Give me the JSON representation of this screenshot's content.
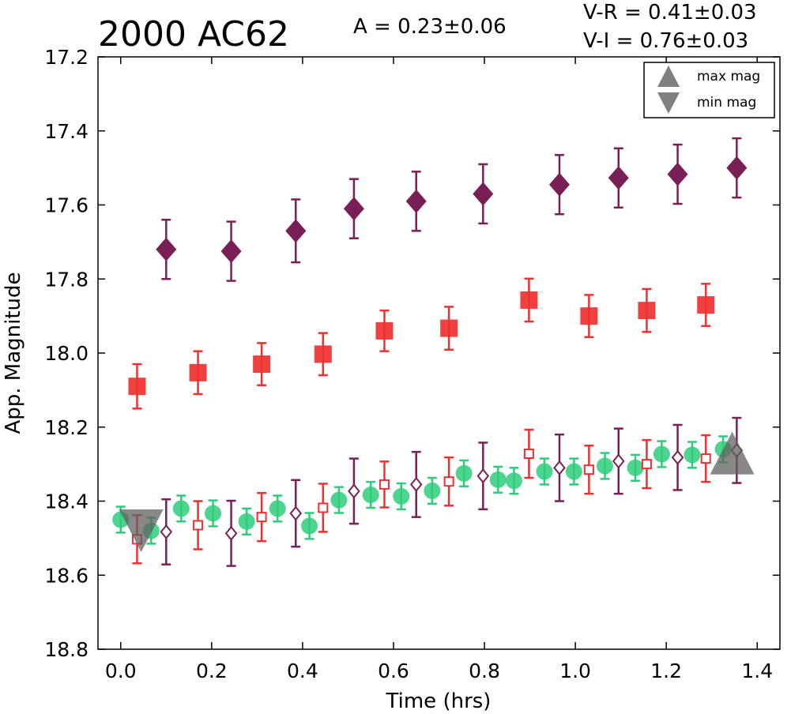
{
  "chart_data": {
    "type": "scatter",
    "title": "2000 AC62",
    "xlabel": "Time (hrs)",
    "ylabel": "App. Magnitude",
    "xlim": [
      -0.05,
      1.45
    ],
    "ylim": [
      18.8,
      17.2
    ],
    "y_inverted": true,
    "xticks": [
      "0.0",
      "0.2",
      "0.4",
      "0.6",
      "0.8",
      "1.0",
      "1.2",
      "1.4"
    ],
    "xtick_values": [
      0.0,
      0.2,
      0.4,
      0.6,
      0.8,
      1.0,
      1.2,
      1.4
    ],
    "yticks": [
      "17.2",
      "17.4",
      "17.6",
      "17.8",
      "18.0",
      "18.2",
      "18.4",
      "18.6",
      "18.8"
    ],
    "ytick_values": [
      17.2,
      17.4,
      17.6,
      17.8,
      18.0,
      18.2,
      18.4,
      18.6,
      18.8
    ],
    "grid": false,
    "legend_placement": "top-right",
    "annotations": {
      "amplitude": "A  = 0.23±0.06",
      "vr": "V-R = 0.41±0.03",
      "vi": "V-I  = 0.76±0.03"
    },
    "legend": [
      {
        "label": "max mag",
        "marker": "triangle-up",
        "color": "#808080"
      },
      {
        "label": "min mag",
        "marker": "triangle-down",
        "color": "#808080"
      }
    ],
    "series": [
      {
        "marker": "diamond-filled",
        "color": "#7a1f55",
        "x": [
          0.1,
          0.243,
          0.385,
          0.513,
          0.65,
          0.797,
          0.965,
          1.095,
          1.225,
          1.355
        ],
        "y": [
          17.72,
          17.725,
          17.67,
          17.61,
          17.59,
          17.57,
          17.545,
          17.527,
          17.517,
          17.5
        ],
        "err": [
          0.08,
          0.08,
          0.085,
          0.08,
          0.08,
          0.08,
          0.08,
          0.08,
          0.08,
          0.08
        ]
      },
      {
        "marker": "square-filled",
        "color": "#f03030",
        "x": [
          0.036,
          0.17,
          0.31,
          0.445,
          0.58,
          0.722,
          0.898,
          1.03,
          1.157,
          1.287
        ],
        "y": [
          18.09,
          18.053,
          18.03,
          18.003,
          17.94,
          17.933,
          17.857,
          17.9,
          17.885,
          17.87
        ],
        "err": [
          0.06,
          0.058,
          0.057,
          0.057,
          0.055,
          0.058,
          0.058,
          0.057,
          0.058,
          0.057
        ]
      },
      {
        "marker": "circle-filled",
        "color": "#2ecc7a",
        "x": [
          0.0,
          0.067,
          0.133,
          0.203,
          0.277,
          0.345,
          0.415,
          0.48,
          0.55,
          0.617,
          0.685,
          0.755,
          0.83,
          0.865,
          0.932,
          0.997,
          1.065,
          1.132,
          1.19,
          1.257,
          1.325
        ],
        "y": [
          18.45,
          18.48,
          18.42,
          18.433,
          18.455,
          18.42,
          18.467,
          18.397,
          18.383,
          18.387,
          18.372,
          18.325,
          18.342,
          18.345,
          18.32,
          18.32,
          18.305,
          18.31,
          18.273,
          18.275,
          18.26
        ],
        "err": [
          0.035,
          0.035,
          0.035,
          0.035,
          0.035,
          0.035,
          0.035,
          0.035,
          0.035,
          0.035,
          0.035,
          0.035,
          0.035,
          0.035,
          0.035,
          0.035,
          0.035,
          0.035,
          0.035,
          0.035,
          0.035
        ]
      },
      {
        "marker": "square-open",
        "color": "#f03030",
        "x": [
          0.036,
          0.17,
          0.31,
          0.445,
          0.58,
          0.722,
          0.898,
          1.03,
          1.157,
          1.287
        ],
        "y": [
          18.503,
          18.465,
          18.443,
          18.418,
          18.355,
          18.347,
          18.272,
          18.315,
          18.3,
          18.285
        ],
        "err": [
          0.065,
          0.065,
          0.065,
          0.065,
          0.062,
          0.065,
          0.065,
          0.065,
          0.065,
          0.063
        ]
      },
      {
        "marker": "diamond-open",
        "color": "#7a1f55",
        "x": [
          0.1,
          0.243,
          0.385,
          0.513,
          0.65,
          0.797,
          0.965,
          1.095,
          1.225,
          1.355
        ],
        "y": [
          18.483,
          18.487,
          18.433,
          18.373,
          18.355,
          18.332,
          18.31,
          18.292,
          18.282,
          18.263
        ],
        "err": [
          0.088,
          0.088,
          0.09,
          0.088,
          0.088,
          0.09,
          0.09,
          0.088,
          0.088,
          0.088
        ]
      }
    ],
    "extrema": [
      {
        "kind": "min mag",
        "marker": "triangle-down",
        "x": 0.045,
        "y": 18.48
      },
      {
        "kind": "max mag",
        "marker": "triangle-up",
        "x": 1.345,
        "y": 18.27
      }
    ]
  }
}
